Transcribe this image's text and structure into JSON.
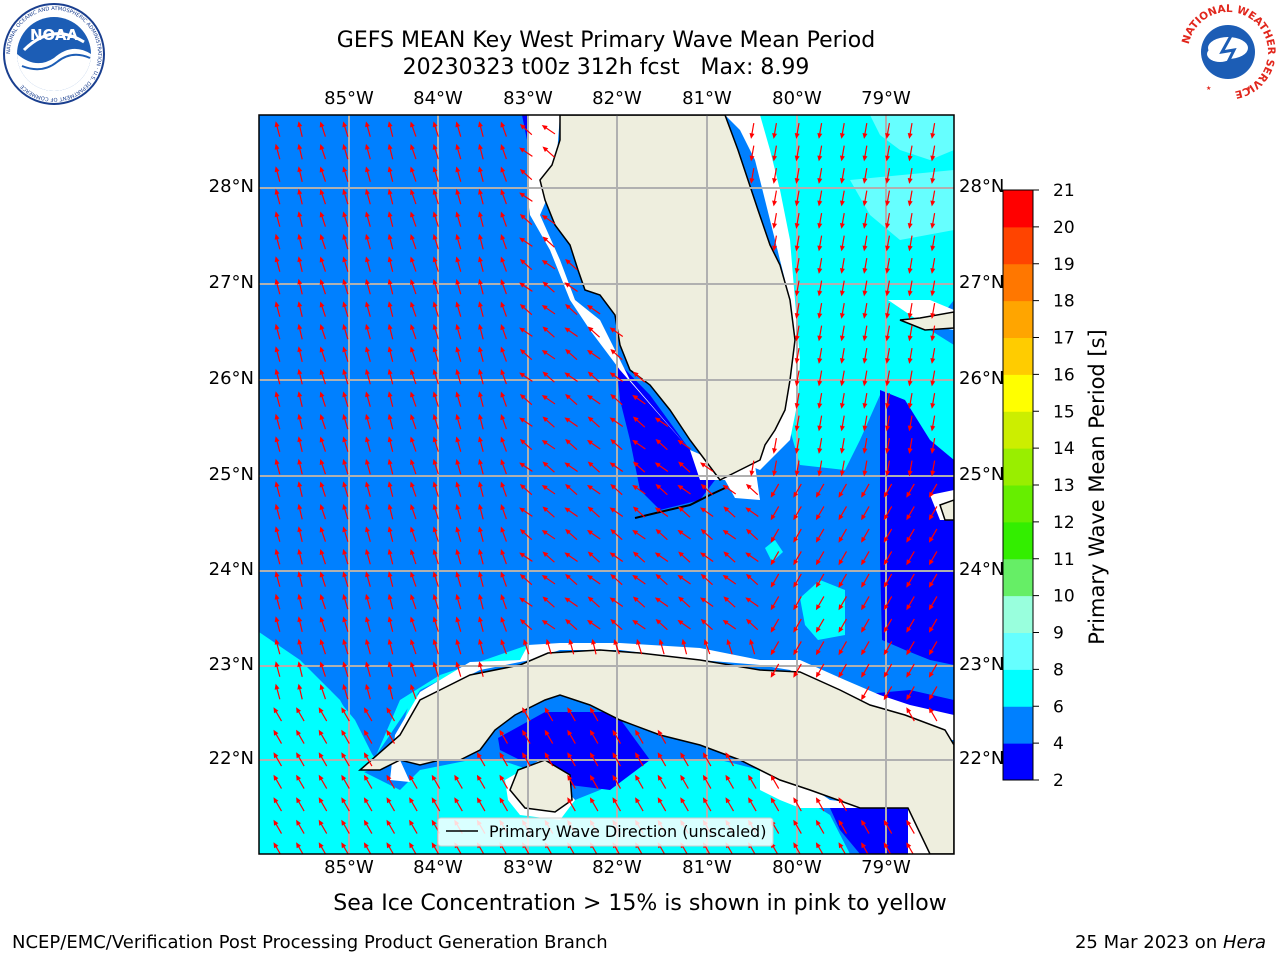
{
  "title": {
    "line1": "GEFS MEAN Key West Primary Wave Mean Period",
    "line2": "20230323 t00z 312h fcst   Max: 8.99"
  },
  "logos": {
    "noaa": {
      "text": "NOAA",
      "ring_text": "NATIONAL OCEANIC AND ATMOSPHERIC ADMINISTRATION · U.S. DEPARTMENT OF COMMERCE"
    },
    "nws": {
      "ring_text": "NATIONAL WEATHER SERVICE"
    }
  },
  "map": {
    "lon_ticks": [
      "85°W",
      "84°W",
      "83°W",
      "82°W",
      "81°W",
      "80°W",
      "79°W"
    ],
    "lat_ticks": [
      "28°N",
      "27°N",
      "26°N",
      "25°N",
      "24°N",
      "23°N",
      "22°N"
    ],
    "legend": "Primary Wave Direction (unscaled)",
    "colors": {
      "land": "#eeeede",
      "ocean_2_4": "#0000ff",
      "ocean_4_6": "#0080ff",
      "ocean_6_8": "#00ffff",
      "ocean_8_9": "#66ffff",
      "arrows": "#ff0000",
      "grid": "#b0b0b0"
    }
  },
  "colorbar": {
    "label": "Primary Wave Mean Period [s]",
    "ticks": [
      "2",
      "4",
      "6",
      "8",
      "9",
      "10",
      "11",
      "12",
      "13",
      "14",
      "15",
      "16",
      "17",
      "18",
      "19",
      "20",
      "21"
    ],
    "colors": [
      "#0000ff",
      "#0080ff",
      "#00ffff",
      "#66ffff",
      "#99ffdd",
      "#66ee66",
      "#33ee00",
      "#66ee00",
      "#99ee00",
      "#ccee00",
      "#ffff00",
      "#ffcc00",
      "#ffa500",
      "#ff7700",
      "#ff4400",
      "#ff0000"
    ]
  },
  "caption": "Sea Ice Concentration > 15% is shown in pink to yellow",
  "footer": {
    "left": "NCEP/EMC/Verification Post Processing Product Generation Branch",
    "date": "25 Mar 2023 on ",
    "host": "Hera"
  }
}
